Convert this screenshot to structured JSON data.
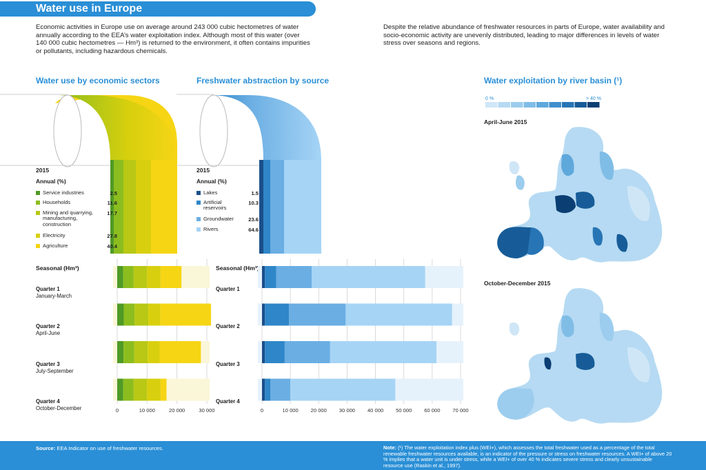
{
  "header": {
    "title": "Water use in Europe"
  },
  "intro": {
    "left": "Economic activities in Europe use on average around 243 000 cubic hectometres of water annually according to the EEA’s water exploitation index. Although most of this water (over 140 000 cubic hectometres — Hm³) is returned to the environment, it often contains impurities or pollutants, including hazardous chemicals.",
    "right": "Despite the relative abundance of freshwater resources in parts of Europe, water availability and socio-economic activity are unevenly distributed, leading to major differences in levels of water stress over seasons and regions."
  },
  "sections": {
    "sectors_title": "Water use by economic sectors",
    "sources_title": "Freshwater abstraction by source",
    "map_title": "Water exploitation by river basin (¹)"
  },
  "sectors_legend": {
    "year": "2015",
    "annual": "Annual (%)",
    "seasonal": "Seasonal (Hm³)",
    "items": [
      {
        "label": "Service industries",
        "value": "2.5",
        "color": "#4f9a25"
      },
      {
        "label": "Households",
        "value": "11.6",
        "color": "#8cbd1f"
      },
      {
        "label": "Mining and quarrying, manufacturing, construction",
        "value": "17.7",
        "color": "#b8c814"
      },
      {
        "label": "Electricity",
        "value": "27.8",
        "color": "#d8d00e"
      },
      {
        "label": "Agriculture",
        "value": "40.4",
        "color": "#f6d515"
      }
    ],
    "quarters": [
      {
        "name": "Quarter 1",
        "months": "January-March"
      },
      {
        "name": "Quarter 2",
        "months": "April-June"
      },
      {
        "name": "Quarter 3",
        "months": "July-September"
      },
      {
        "name": "Quarter 4",
        "months": "October-December"
      }
    ]
  },
  "sources_legend": {
    "year": "2015",
    "annual": "Annual (%)",
    "seasonal": "Seasonal (Hm³)",
    "items": [
      {
        "label": "Lakes",
        "value": "1.5",
        "color": "#1b4f8a"
      },
      {
        "label": "Artificial reservoirs",
        "value": "10.3",
        "color": "#2f86c8"
      },
      {
        "label": "Groundwater",
        "value": "23.6",
        "color": "#6aaee3"
      },
      {
        "label": "Rivers",
        "value": "64.6",
        "color": "#a6d4f5"
      }
    ],
    "quarters": [
      {
        "name": "Quarter 1"
      },
      {
        "name": "Quarter 2"
      },
      {
        "name": "Quarter 3"
      },
      {
        "name": "Quarter 4"
      }
    ]
  },
  "map": {
    "scale_min": "0 %",
    "scale_max": "> 40 %",
    "scale_colors": [
      "#cfe6f7",
      "#b6daf3",
      "#9ccdee",
      "#80bde6",
      "#5fa8dc",
      "#3f8fcd",
      "#2775b5",
      "#175c98",
      "#0b3f73"
    ],
    "panel1": "April-June 2015",
    "panel2": "October-December 2015"
  },
  "chart_data": [
    {
      "type": "bar",
      "orientation": "horizontal",
      "stacked": true,
      "title": "Water use by economic sectors — Seasonal (Hm³)",
      "categories": [
        "Quarter 1",
        "Quarter 2",
        "Quarter 3",
        "Quarter 4"
      ],
      "series": [
        {
          "name": "Service industries",
          "values": [
            2000,
            2200,
            2100,
            2000
          ]
        },
        {
          "name": "Households",
          "values": [
            3500,
            3600,
            3600,
            3500
          ]
        },
        {
          "name": "Mining and quarrying, manufacturing, construction",
          "values": [
            4500,
            4600,
            4500,
            4500
          ]
        },
        {
          "name": "Electricity",
          "values": [
            4500,
            4000,
            4000,
            4500
          ]
        },
        {
          "name": "Agriculture",
          "values": [
            7000,
            17000,
            13800,
            2000
          ]
        }
      ],
      "xlim": [
        0,
        30000
      ],
      "xticks": [
        "0",
        "10 000",
        "20 000",
        "30 000"
      ]
    },
    {
      "type": "bar",
      "orientation": "horizontal",
      "stacked": true,
      "title": "Freshwater abstraction by source — Seasonal (Hm³)",
      "categories": [
        "Quarter 1",
        "Quarter 2",
        "Quarter 3",
        "Quarter 4"
      ],
      "series": [
        {
          "name": "Lakes",
          "values": [
            1000,
            1000,
            1000,
            1000
          ]
        },
        {
          "name": "Artificial reservoirs",
          "values": [
            4000,
            8500,
            7000,
            2000
          ]
        },
        {
          "name": "Groundwater",
          "values": [
            12500,
            20000,
            16000,
            7000
          ]
        },
        {
          "name": "Rivers",
          "values": [
            40000,
            37500,
            37500,
            37000
          ]
        }
      ],
      "xlim": [
        0,
        70000
      ],
      "xticks": [
        "0",
        "10 000",
        "20 000",
        "30 000",
        "40 000",
        "50 000",
        "60 000",
        "70 000"
      ]
    }
  ],
  "footer": {
    "source_label": "Source:",
    "source": "EEA Indicator on use of freshwater resources.",
    "note_label": "Note:",
    "note": "(¹) The water exploitation index plus (WEI+), which assesses the total freshwater used as a percentage of the total renewable freshwater resources available, is an indicator of the pressure or stress on freshwater resources. A WEI+ of above 20 % implies that a water unit is under stress, while a WEI+ of over 40 % indicates severe stress and clearly unsustainable resource use (Raskin et al., 1997)."
  }
}
